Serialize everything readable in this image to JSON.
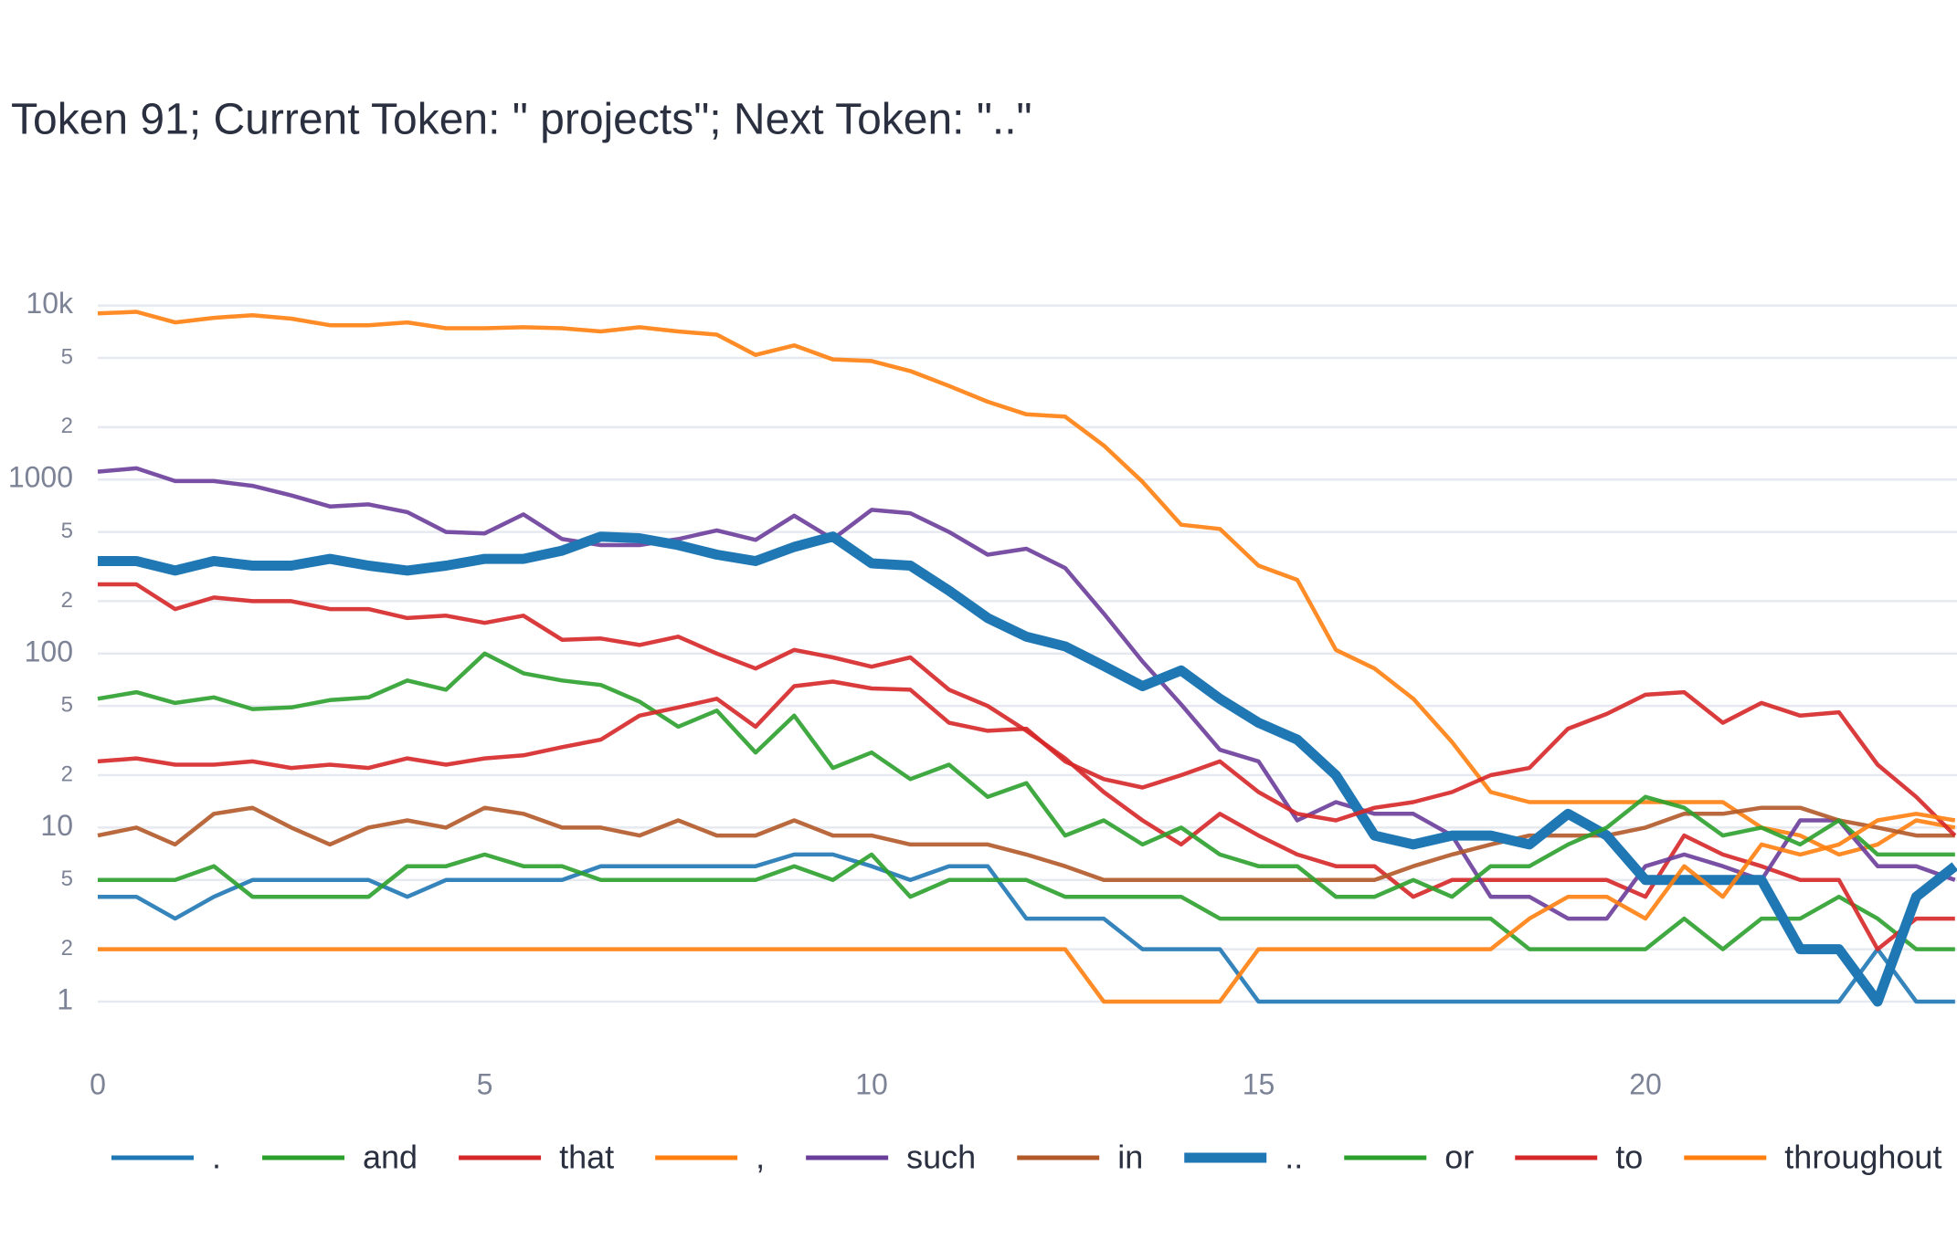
{
  "chart_data": {
    "type": "line",
    "title": "Token 91; Current Token: \" projects\"; Next Token: \"..\"",
    "x": [
      0,
      0.5,
      1,
      1.5,
      2,
      2.5,
      3,
      3.5,
      4,
      4.5,
      5,
      5.5,
      6,
      6.5,
      7,
      7.5,
      8,
      8.5,
      9,
      9.5,
      10,
      10.5,
      11,
      11.5,
      12,
      12.5,
      13,
      13.5,
      14,
      14.5,
      15,
      15.5,
      16,
      16.5,
      17,
      17.5,
      18,
      18.5,
      19,
      19.5,
      20,
      20.5,
      21,
      21.5,
      22,
      22.5,
      23,
      23.5,
      24
    ],
    "xlim": [
      0,
      24
    ],
    "xticks": [
      0,
      5,
      10,
      15,
      20
    ],
    "ylim": [
      0.6,
      15000
    ],
    "log_y": true,
    "grid": true,
    "yticks": [
      1,
      2,
      5,
      10,
      {
        "value": 20,
        "label": "2"
      },
      {
        "value": 50,
        "label": "5"
      },
      100,
      {
        "value": 200,
        "label": "2"
      },
      {
        "value": 500,
        "label": "5"
      },
      1000,
      {
        "value": 2000,
        "label": "2"
      },
      {
        "value": 5000,
        "label": "5"
      },
      {
        "value": 10000,
        "label": "10k"
      }
    ],
    "legend": "bottom",
    "series": [
      {
        "name": ".",
        "color": "#1f77b4",
        "values": [
          4,
          4,
          3,
          4,
          5,
          5,
          5,
          5,
          4,
          5,
          5,
          5,
          5,
          6,
          6,
          6,
          6,
          6,
          7,
          7,
          6,
          5,
          6,
          6,
          3,
          3,
          3,
          2,
          2,
          2,
          1,
          1,
          1,
          1,
          1,
          1,
          1,
          1,
          1,
          1,
          1,
          1,
          1,
          1,
          1,
          1,
          2,
          1,
          1
        ]
      },
      {
        "name": "and",
        "color": "#2ca02c",
        "values": [
          5,
          5,
          5,
          6,
          4,
          4,
          4,
          4,
          6,
          6,
          7,
          6,
          6,
          5,
          5,
          5,
          5,
          5,
          6,
          5,
          7,
          4,
          5,
          5,
          5,
          4,
          4,
          4,
          4,
          3,
          3,
          3,
          3,
          3,
          3,
          3,
          3,
          2,
          2,
          2,
          2,
          3,
          2,
          3,
          3,
          4,
          3,
          2,
          2
        ]
      },
      {
        "name": "that",
        "color": "#d62728",
        "values": [
          250,
          250,
          180,
          210,
          200,
          200,
          180,
          180,
          160,
          165,
          150,
          165,
          120,
          122,
          112,
          125,
          100,
          82,
          105,
          95,
          84,
          95,
          62,
          50,
          36,
          25,
          16,
          11,
          8,
          12,
          9,
          7,
          6,
          6,
          4,
          5,
          5,
          5,
          5,
          5,
          4,
          9,
          7,
          6,
          5,
          5,
          2,
          3,
          3
        ]
      },
      {
        "name": ",",
        "color": "#ff7f0e",
        "values": [
          9000,
          9200,
          8000,
          8500,
          8800,
          8400,
          7700,
          7700,
          8000,
          7400,
          7400,
          7500,
          7400,
          7100,
          7500,
          7100,
          6800,
          5200,
          5900,
          4900,
          4800,
          4200,
          3450,
          2800,
          2370,
          2300,
          1570,
          970,
          550,
          520,
          320,
          265,
          105,
          82,
          55,
          31,
          16,
          14,
          14,
          14,
          14,
          14,
          14,
          10,
          9,
          7,
          8,
          11,
          10
        ]
      },
      {
        "name": "such",
        "color": "#6a3d9a",
        "values": [
          1110,
          1160,
          980,
          980,
          920,
          810,
          700,
          720,
          650,
          500,
          490,
          630,
          455,
          420,
          420,
          455,
          510,
          450,
          620,
          455,
          670,
          640,
          500,
          370,
          400,
          310,
          170,
          90,
          51,
          28,
          24,
          11,
          14,
          12,
          12,
          9,
          4,
          4,
          3,
          3,
          6,
          7,
          6,
          5,
          11,
          11,
          6,
          6,
          5
        ]
      },
      {
        "name": "in",
        "color": "#b15928",
        "values": [
          9,
          10,
          8,
          12,
          13,
          10,
          8,
          10,
          11,
          10,
          13,
          12,
          10,
          10,
          9,
          11,
          9,
          9,
          11,
          9,
          9,
          8,
          8,
          8,
          7,
          6,
          5,
          5,
          5,
          5,
          5,
          5,
          5,
          5,
          6,
          7,
          8,
          9,
          9,
          9,
          10,
          12,
          12,
          13,
          13,
          11,
          10,
          9,
          9
        ]
      },
      {
        "name": "..",
        "color": "#1f77b4",
        "emphasis": true,
        "values": [
          340,
          340,
          300,
          340,
          320,
          320,
          350,
          320,
          300,
          320,
          350,
          350,
          390,
          470,
          460,
          420,
          370,
          340,
          410,
          470,
          330,
          320,
          230,
          160,
          125,
          110,
          85,
          65,
          80,
          55,
          40,
          32,
          20,
          9,
          8,
          9,
          9,
          8,
          12,
          9,
          5,
          5,
          5,
          5,
          2,
          2,
          1,
          4,
          6
        ]
      },
      {
        "name": "or",
        "color": "#2ca02c",
        "values": [
          55,
          60,
          52,
          56,
          48,
          49,
          54,
          56,
          70,
          62,
          100,
          77,
          70,
          66,
          53,
          38,
          47,
          27,
          44,
          22,
          27,
          19,
          23,
          15,
          18,
          9,
          11,
          8,
          10,
          7,
          6,
          6,
          4,
          4,
          5,
          4,
          6,
          6,
          8,
          10,
          15,
          13,
          9,
          10,
          8,
          11,
          7,
          7,
          7
        ]
      },
      {
        "name": "to",
        "color": "#d62728",
        "values": [
          24,
          25,
          23,
          23,
          24,
          22,
          23,
          22,
          25,
          23,
          25,
          26,
          29,
          32,
          44,
          49,
          55,
          38,
          65,
          69,
          63,
          62,
          40,
          36,
          37,
          24,
          19,
          17,
          20,
          24,
          16,
          12,
          11,
          13,
          14,
          16,
          20,
          22,
          37,
          45,
          58,
          60,
          40,
          52,
          44,
          46,
          23,
          15,
          9
        ]
      },
      {
        "name": "throughout",
        "color": "#ff7f0e",
        "values": [
          2,
          2,
          2,
          2,
          2,
          2,
          2,
          2,
          2,
          2,
          2,
          2,
          2,
          2,
          2,
          2,
          2,
          2,
          2,
          2,
          2,
          2,
          2,
          2,
          2,
          2,
          1,
          1,
          1,
          1,
          2,
          2,
          2,
          2,
          2,
          2,
          2,
          3,
          4,
          4,
          3,
          6,
          4,
          8,
          7,
          8,
          11,
          12,
          11
        ]
      }
    ]
  }
}
